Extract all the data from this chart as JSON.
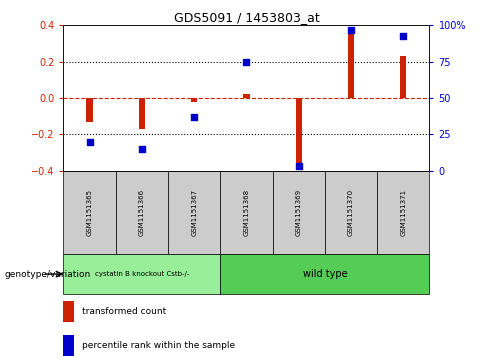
{
  "title": "GDS5091 / 1453803_at",
  "samples": [
    "GSM1151365",
    "GSM1151366",
    "GSM1151367",
    "GSM1151368",
    "GSM1151369",
    "GSM1151370",
    "GSM1151371"
  ],
  "bar_values": [
    -0.13,
    -0.17,
    -0.02,
    0.02,
    -0.39,
    0.35,
    0.23
  ],
  "scatter_percentile": [
    20,
    15,
    37,
    75,
    3,
    97,
    93
  ],
  "ylim": [
    -0.4,
    0.4
  ],
  "right_ylim": [
    0,
    100
  ],
  "right_yticks": [
    0,
    25,
    50,
    75,
    100
  ],
  "right_yticklabels": [
    "0",
    "25",
    "50",
    "75",
    "100%"
  ],
  "left_yticks": [
    -0.4,
    -0.2,
    0.0,
    0.2,
    0.4
  ],
  "hline_dotted": [
    -0.2,
    0.0,
    0.2
  ],
  "bar_color": "#cc2200",
  "scatter_color": "#0000cc",
  "background_color": "#ffffff",
  "group1_label": "cystatin B knockout Cstb-/-",
  "group2_label": "wild type",
  "group1_indices": [
    0,
    1,
    2
  ],
  "group2_indices": [
    3,
    4,
    5,
    6
  ],
  "group1_color": "#99ee99",
  "group2_color": "#55cc55",
  "legend_bar_label": "transformed count",
  "legend_scatter_label": "percentile rank within the sample",
  "genotype_label": "genotype/variation",
  "sample_box_color": "#cccccc",
  "bar_width": 0.12
}
